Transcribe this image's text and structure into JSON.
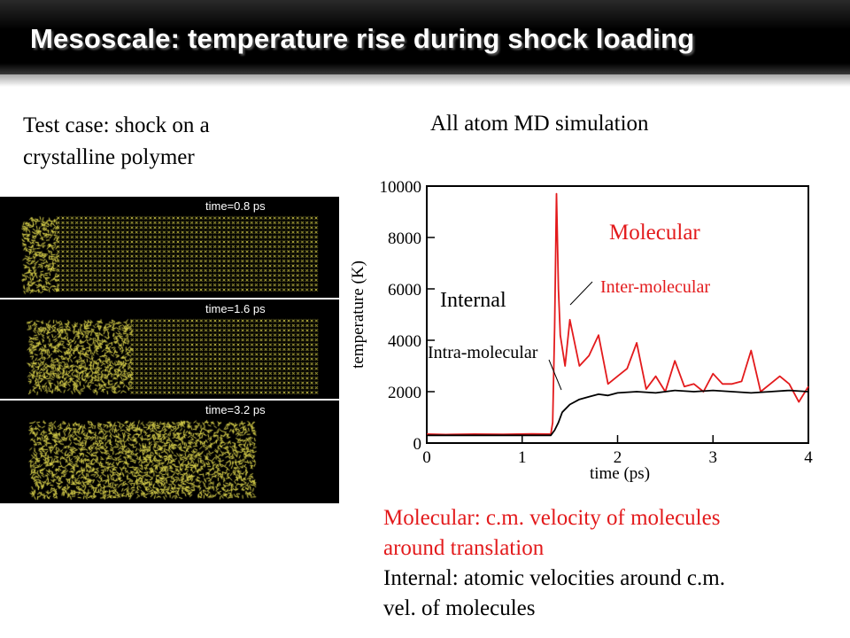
{
  "slide": {
    "title": "Mesoscale: temperature rise during shock loading",
    "left_caption_line1": "Test case: shock on a",
    "left_caption_line2": "crystalline polymer",
    "right_caption": "All atom MD simulation",
    "snapshots": [
      {
        "label": "time=0.8 ps",
        "compressed_fraction": 0.12
      },
      {
        "label": "time=1.6 ps",
        "compressed_fraction": 0.36
      },
      {
        "label": "time=3.2 ps",
        "compressed_fraction": 1.0
      }
    ],
    "description_molecular_line1": "Molecular: c.m. velocity of molecules",
    "description_molecular_line2": "around translation",
    "description_internal_line1": "Internal: atomic velocities around c.m.",
    "description_internal_line2": "vel. of molecules"
  },
  "chart_data": {
    "type": "line",
    "xlabel": "time (ps)",
    "ylabel": "temperature (K)",
    "xlim": [
      0,
      4
    ],
    "ylim": [
      0,
      10000
    ],
    "xticks": [
      0,
      1,
      2,
      3,
      4
    ],
    "yticks": [
      0,
      2000,
      4000,
      6000,
      8000,
      10000
    ],
    "grid": false,
    "series": [
      {
        "name": "Inter-molecular",
        "color": "#e31a1c",
        "x": [
          0,
          0.2,
          0.5,
          0.8,
          1.1,
          1.3,
          1.32,
          1.34,
          1.36,
          1.38,
          1.4,
          1.45,
          1.5,
          1.6,
          1.7,
          1.8,
          1.9,
          2.0,
          2.1,
          2.2,
          2.3,
          2.4,
          2.5,
          2.6,
          2.7,
          2.8,
          2.9,
          3.0,
          3.1,
          3.2,
          3.3,
          3.4,
          3.5,
          3.6,
          3.7,
          3.8,
          3.9,
          4.0
        ],
        "y": [
          350,
          330,
          350,
          340,
          360,
          350,
          800,
          4500,
          9700,
          6000,
          4200,
          3000,
          4800,
          3000,
          3400,
          4200,
          2300,
          2600,
          2900,
          3900,
          2100,
          2600,
          2000,
          3200,
          2200,
          2300,
          2000,
          2700,
          2300,
          2300,
          2400,
          3600,
          2000,
          2300,
          2600,
          2300,
          1600,
          2200
        ]
      },
      {
        "name": "Intra-molecular",
        "color": "#000000",
        "x": [
          0,
          0.2,
          0.5,
          0.8,
          1.1,
          1.3,
          1.34,
          1.38,
          1.42,
          1.5,
          1.6,
          1.7,
          1.8,
          1.9,
          2.0,
          2.2,
          2.4,
          2.6,
          2.8,
          3.0,
          3.2,
          3.4,
          3.6,
          3.8,
          4.0
        ],
        "y": [
          300,
          300,
          300,
          300,
          300,
          300,
          500,
          800,
          1200,
          1500,
          1700,
          1800,
          1900,
          1850,
          1950,
          2000,
          1950,
          2050,
          2000,
          2050,
          2000,
          1950,
          2000,
          2050,
          2000
        ]
      }
    ],
    "annotations": [
      {
        "text": "Molecular",
        "color": "#e31a1c"
      },
      {
        "text": "Inter-molecular",
        "color": "#e31a1c"
      },
      {
        "text": "Internal",
        "color": "#000000"
      },
      {
        "text": "Intra-molecular",
        "color": "#000000"
      }
    ]
  }
}
